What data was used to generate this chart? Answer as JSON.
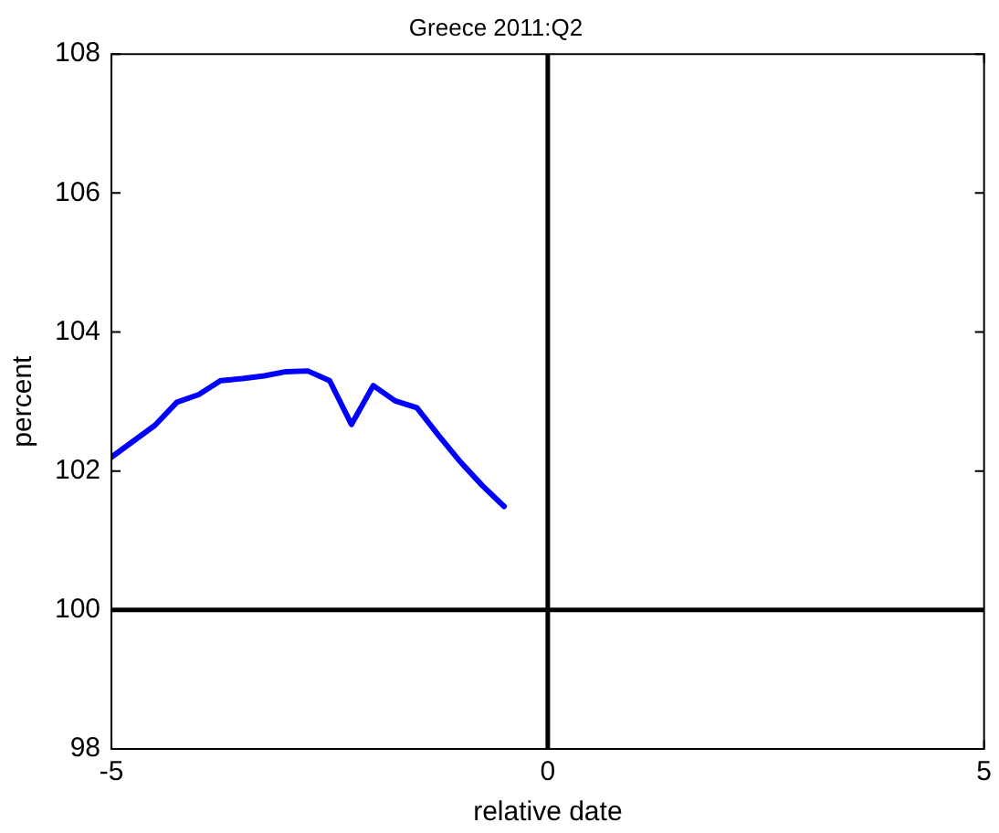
{
  "chart_data": {
    "type": "line",
    "title": "Greece 2011:Q2",
    "xlabel": "relative date",
    "ylabel": "percent",
    "x": [
      -5,
      -4.75,
      -4.5,
      -4.25,
      -4,
      -3.75,
      -3.5,
      -3.25,
      -3,
      -2.75,
      -2.5,
      -2.25,
      -2,
      -1.75,
      -1.5,
      -1.25,
      -1,
      -0.75,
      -0.5
    ],
    "series": [
      {
        "color": "#0000ff",
        "values": [
          102.2,
          102.43,
          102.66,
          102.99,
          103.1,
          103.3,
          103.33,
          103.37,
          103.43,
          103.44,
          103.3,
          102.67,
          103.23,
          103.01,
          102.91,
          102.51,
          102.13,
          101.79,
          101.49
        ]
      }
    ],
    "xlim": [
      -5,
      5
    ],
    "xticks": [
      -5,
      0,
      5
    ],
    "ylim": [
      98,
      108
    ],
    "yticks": [
      98,
      100,
      102,
      104,
      106,
      108
    ],
    "ref_lines": [
      {
        "axis": "x",
        "value": 0,
        "color": "#000000"
      },
      {
        "axis": "y",
        "value": 100,
        "color": "#000000"
      }
    ],
    "grid": false,
    "legend": false,
    "marker": "none",
    "line_style": "solid"
  }
}
